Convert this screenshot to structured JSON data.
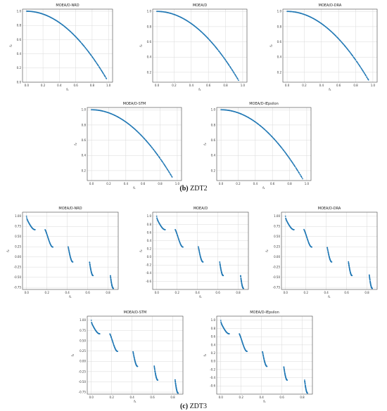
{
  "captions": [
    {
      "letter": "(b)",
      "label": " ZDT2"
    },
    {
      "letter": "(c)",
      "label": " ZDT3"
    }
  ],
  "colors": {
    "points": "#1f77b4",
    "grid": "#d9d9d9",
    "frame": "#444444"
  },
  "chart_data": [
    {
      "type": "scatter",
      "title": "MOEA/D-NRD",
      "xlabel": "f₁",
      "ylabel": "f₂",
      "xlim": [
        -0.05,
        1.05
      ],
      "ylim": [
        0,
        1.03
      ],
      "xticks": [
        0.0,
        0.2,
        0.4,
        0.6,
        0.8,
        1.0
      ],
      "yticks": [
        0.0,
        0.2,
        0.4,
        0.6,
        0.8,
        1.0
      ],
      "tick_decimals": 1,
      "grid": true,
      "problem": "zdt2",
      "x_range": [
        0.0,
        0.975
      ]
    },
    {
      "type": "scatter",
      "title": "MOEA/D",
      "xlabel": "f₁",
      "ylabel": "f₂",
      "xlim": [
        -0.05,
        1.05
      ],
      "ylim": [
        0.07,
        1.03
      ],
      "xticks": [
        0.0,
        0.2,
        0.4,
        0.6,
        0.8,
        1.0
      ],
      "yticks": [
        0.2,
        0.4,
        0.6,
        0.8,
        1.0
      ],
      "tick_decimals": 1,
      "grid": true,
      "problem": "zdt2",
      "x_range": [
        0.0,
        0.95
      ]
    },
    {
      "type": "scatter",
      "title": "MOEA/D-DRA",
      "xlabel": "f₁",
      "ylabel": "f₂",
      "xlim": [
        -0.05,
        1.05
      ],
      "ylim": [
        0.07,
        1.03
      ],
      "xticks": [
        0.0,
        0.2,
        0.4,
        0.6,
        0.8,
        1.0
      ],
      "yticks": [
        0.2,
        0.4,
        0.6,
        0.8,
        1.0
      ],
      "tick_decimals": 1,
      "grid": true,
      "problem": "zdt2",
      "x_range": [
        0.0,
        0.95
      ]
    },
    {
      "type": "scatter",
      "title": "MOEA/D-STM",
      "xlabel": "f₁",
      "ylabel": "f₂",
      "xlim": [
        -0.05,
        1.05
      ],
      "ylim": [
        0.07,
        1.03
      ],
      "xticks": [
        0.0,
        0.2,
        0.4,
        0.6,
        0.8,
        1.0
      ],
      "yticks": [
        0.2,
        0.4,
        0.6,
        0.8,
        1.0
      ],
      "tick_decimals": 1,
      "grid": true,
      "problem": "zdt2",
      "x_range": [
        0.0,
        0.94
      ]
    },
    {
      "type": "scatter",
      "title": "MOEA/D-IEpsilon",
      "xlabel": "f₁",
      "ylabel": "f₂",
      "xlim": [
        -0.05,
        1.05
      ],
      "ylim": [
        0.07,
        1.03
      ],
      "xticks": [
        0.0,
        0.2,
        0.4,
        0.6,
        0.8,
        1.0
      ],
      "yticks": [
        0.2,
        0.4,
        0.6,
        0.8,
        1.0
      ],
      "tick_decimals": 1,
      "grid": true,
      "problem": "zdt2",
      "x_range": [
        0.0,
        0.95
      ]
    },
    {
      "type": "scatter",
      "title": "MOEA/D-NRD",
      "xlabel": "f₁",
      "ylabel": "f₂",
      "xlim": [
        -0.04,
        0.9
      ],
      "ylim": [
        -0.8,
        1.1
      ],
      "xticks": [
        0.0,
        0.2,
        0.4,
        0.6,
        0.8
      ],
      "yticks": [
        -0.75,
        -0.5,
        -0.25,
        0.0,
        0.25,
        0.5,
        0.75,
        1.0
      ],
      "tick_decimals": 2,
      "grid": true,
      "problem": "zdt3"
    },
    {
      "type": "scatter",
      "title": "MOEA/D",
      "xlabel": "f₁",
      "ylabel": "f₂",
      "xlim": [
        -0.04,
        0.9
      ],
      "ylim": [
        -0.8,
        1.1
      ],
      "xticks": [
        0.0,
        0.2,
        0.4,
        0.6,
        0.8
      ],
      "yticks": [
        -0.6,
        -0.4,
        -0.2,
        0.0,
        0.2,
        0.4,
        0.6,
        0.8,
        1.0
      ],
      "tick_decimals": 1,
      "grid": true,
      "problem": "zdt3"
    },
    {
      "type": "scatter",
      "title": "MOEA/D-DRA",
      "xlabel": "f₁",
      "ylabel": "f₂",
      "xlim": [
        -0.04,
        0.9
      ],
      "ylim": [
        -0.8,
        1.1
      ],
      "xticks": [
        0.0,
        0.2,
        0.4,
        0.6,
        0.8
      ],
      "yticks": [
        -0.75,
        -0.5,
        -0.25,
        0.0,
        0.25,
        0.5,
        0.75,
        1.0
      ],
      "tick_decimals": 2,
      "grid": true,
      "problem": "zdt3"
    },
    {
      "type": "scatter",
      "title": "MOEA/D-STM",
      "xlabel": "f₁",
      "ylabel": "f₂",
      "xlim": [
        -0.04,
        0.9
      ],
      "ylim": [
        -0.8,
        1.1
      ],
      "xticks": [
        0.0,
        0.2,
        0.4,
        0.6,
        0.8
      ],
      "yticks": [
        -0.75,
        -0.5,
        -0.25,
        0.0,
        0.25,
        0.5,
        0.75,
        1.0
      ],
      "tick_decimals": 2,
      "grid": true,
      "problem": "zdt3"
    },
    {
      "type": "scatter",
      "title": "MOEA/D-IEpsilon",
      "xlabel": "f₁",
      "ylabel": "f₂",
      "xlim": [
        -0.04,
        0.9
      ],
      "ylim": [
        -0.8,
        1.1
      ],
      "xticks": [
        0.0,
        0.2,
        0.4,
        0.6,
        0.8
      ],
      "yticks": [
        -0.6,
        -0.4,
        -0.2,
        0.0,
        0.2,
        0.4,
        0.6,
        0.8,
        1.0
      ],
      "tick_decimals": 1,
      "grid": true,
      "problem": "zdt3"
    }
  ]
}
